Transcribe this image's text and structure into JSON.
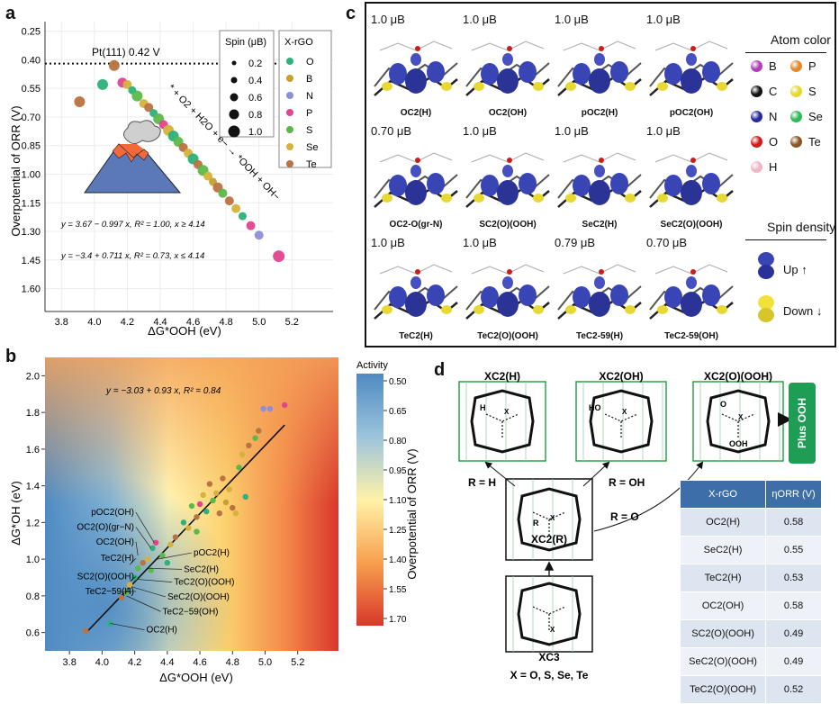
{
  "panels": {
    "a": "a",
    "b": "b",
    "c": "c",
    "d": "d"
  },
  "chart_data": [
    {
      "type": "scatter",
      "ylabel": "Overpotential of ORR (V)",
      "xlabel": "ΔG*OOH (eV)",
      "xlim": [
        3.7,
        5.45
      ],
      "ylim": [
        1.72,
        0.2
      ],
      "yreversed": true,
      "x_ticks": [
        "3.8",
        "4.0",
        "4.2",
        "4.4",
        "4.6",
        "4.8",
        "5.0",
        "5.2"
      ],
      "y_ticks": [
        "0.25",
        "0.40",
        "0.55",
        "0.70",
        "0.85",
        "1.00",
        "1.15",
        "1.30",
        "1.45",
        "1.60"
      ],
      "reference_line": {
        "label": "Pt(111) 0.42 V",
        "y": 0.42
      },
      "reaction_label": "* + O2 + H2O + e− → *OOH + OH−",
      "fit_lines": [
        {
          "label": "y = 3.67 − 0.997 x, R² = 1.00, x ≥ 4.14",
          "intercept": 3.67,
          "slope": -0.997,
          "xrange": [
            4.14,
            5.12
          ]
        },
        {
          "label": "y = −3.4 + 0.711 x, R² = 0.73, x ≤ 4.14",
          "intercept": -3.4,
          "slope": 0.711,
          "xrange": [
            3.9,
            4.14
          ]
        }
      ],
      "spin_legend": {
        "title": "Spin (μB)",
        "values": [
          "0.2",
          "0.4",
          "0.6",
          "0.8",
          "1.0"
        ]
      },
      "group_legend": {
        "title": "X-rGO",
        "items": [
          {
            "label": "O",
            "color": "#2db07a"
          },
          {
            "label": "B",
            "color": "#c5a032"
          },
          {
            "label": "N",
            "color": "#8c8fd8"
          },
          {
            "label": "P",
            "color": "#e0458e"
          },
          {
            "label": "S",
            "color": "#5cb849"
          },
          {
            "label": "Se",
            "color": "#d6b23c"
          },
          {
            "label": "Te",
            "color": "#b87340"
          }
        ]
      },
      "points": [
        {
          "x": 3.91,
          "y": 0.62,
          "g": "Te",
          "s": 0.8
        },
        {
          "x": 4.05,
          "y": 0.53,
          "g": "O",
          "s": 0.8
        },
        {
          "x": 4.12,
          "y": 0.43,
          "g": "Te",
          "s": 0.8
        },
        {
          "x": 4.17,
          "y": 0.52,
          "g": "P",
          "s": 0.7
        },
        {
          "x": 4.2,
          "y": 0.53,
          "g": "Se",
          "s": 0.6
        },
        {
          "x": 4.23,
          "y": 0.56,
          "g": "O",
          "s": 0.5
        },
        {
          "x": 4.26,
          "y": 0.59,
          "g": "S",
          "s": 0.8
        },
        {
          "x": 4.3,
          "y": 0.63,
          "g": "Se",
          "s": 0.6
        },
        {
          "x": 4.33,
          "y": 0.65,
          "g": "Te",
          "s": 0.6
        },
        {
          "x": 4.36,
          "y": 0.68,
          "g": "O",
          "s": 0.5
        },
        {
          "x": 4.39,
          "y": 0.71,
          "g": "S",
          "s": 0.8
        },
        {
          "x": 4.42,
          "y": 0.74,
          "g": "P",
          "s": 0.6
        },
        {
          "x": 4.45,
          "y": 0.77,
          "g": "Se",
          "s": 0.8
        },
        {
          "x": 4.48,
          "y": 0.8,
          "g": "O",
          "s": 0.8
        },
        {
          "x": 4.51,
          "y": 0.83,
          "g": "S",
          "s": 0.7
        },
        {
          "x": 4.54,
          "y": 0.86,
          "g": "Te",
          "s": 0.6
        },
        {
          "x": 4.57,
          "y": 0.89,
          "g": "Se",
          "s": 0.6
        },
        {
          "x": 4.6,
          "y": 0.92,
          "g": "O",
          "s": 0.8
        },
        {
          "x": 4.63,
          "y": 0.95,
          "g": "Te",
          "s": 0.6
        },
        {
          "x": 4.66,
          "y": 0.98,
          "g": "S",
          "s": 0.8
        },
        {
          "x": 4.69,
          "y": 1.01,
          "g": "Se",
          "s": 0.6
        },
        {
          "x": 4.72,
          "y": 1.04,
          "g": "B",
          "s": 0.5
        },
        {
          "x": 4.75,
          "y": 1.07,
          "g": "Te",
          "s": 0.7
        },
        {
          "x": 4.78,
          "y": 1.1,
          "g": "S",
          "s": 0.6
        },
        {
          "x": 4.82,
          "y": 1.14,
          "g": "Te",
          "s": 0.6
        },
        {
          "x": 4.86,
          "y": 1.18,
          "g": "Se",
          "s": 0.6
        },
        {
          "x": 4.9,
          "y": 1.22,
          "g": "O",
          "s": 0.5
        },
        {
          "x": 4.95,
          "y": 1.27,
          "g": "P",
          "s": 0.6
        },
        {
          "x": 5.0,
          "y": 1.32,
          "g": "N",
          "s": 0.6
        },
        {
          "x": 5.12,
          "y": 1.43,
          "g": "P",
          "s": 0.9
        }
      ]
    },
    {
      "type": "scatter",
      "ylabel": "ΔG*OH (eV)",
      "xlabel": "ΔG*OOH (eV)",
      "xlim": [
        3.65,
        5.45
      ],
      "ylim": [
        0.5,
        2.1
      ],
      "x_ticks": [
        "3.8",
        "4.0",
        "4.2",
        "4.4",
        "4.6",
        "4.8",
        "5.0",
        "5.2"
      ],
      "y_ticks": [
        "0.6",
        "0.8",
        "1.0",
        "1.2",
        "1.4",
        "1.6",
        "1.8",
        "2.0"
      ],
      "fit_label": "y = −3.03 + 0.93 x, R² = 0.84",
      "fit": {
        "intercept": -3.03,
        "slope": 0.93,
        "xrange": [
          3.9,
          5.12
        ]
      },
      "colorbar": {
        "title": "Activity",
        "label": "Overpotential of ORR (V)",
        "ticks": [
          "0.50",
          "0.65",
          "0.80",
          "0.95",
          "1.10",
          "1.25",
          "1.40",
          "1.55",
          "1.70"
        ]
      },
      "annotations": [
        {
          "text": "pOC2(OH)",
          "x": 4.32,
          "y": 1.09,
          "side": "left",
          "ty": 1.24
        },
        {
          "text": "OC2(O)(gr−N)",
          "x": 4.3,
          "y": 1.06,
          "side": "left",
          "ty": 1.16
        },
        {
          "text": "OC2(OH)",
          "x": 4.22,
          "y": 1.02,
          "side": "left",
          "ty": 1.08
        },
        {
          "text": "TeC2(H)",
          "x": 4.17,
          "y": 0.97,
          "side": "left",
          "ty": 0.99
        },
        {
          "text": "SC2(O)(OOH)",
          "x": 4.17,
          "y": 0.88,
          "side": "left",
          "ty": 0.89
        },
        {
          "text": "TeC2−59(H)",
          "x": 4.12,
          "y": 0.82,
          "side": "left",
          "ty": 0.81
        },
        {
          "text": "pOC2(H)",
          "x": 4.34,
          "y": 1.0,
          "side": "right",
          "ty": 1.02
        },
        {
          "text": "SeC2(H)",
          "x": 4.28,
          "y": 0.95,
          "side": "right",
          "ty": 0.93
        },
        {
          "text": "TeC2(O)(OOH)",
          "x": 4.22,
          "y": 0.89,
          "side": "right",
          "ty": 0.86
        },
        {
          "text": "SeC2(O)(OOH)",
          "x": 4.18,
          "y": 0.85,
          "side": "right",
          "ty": 0.78
        },
        {
          "text": "TeC2−59(OH)",
          "x": 4.15,
          "y": 0.8,
          "side": "right",
          "ty": 0.7
        },
        {
          "text": "OC2(H)",
          "x": 4.05,
          "y": 0.65,
          "side": "right",
          "ty": 0.6
        }
      ],
      "points": [
        {
          "x": 3.9,
          "y": 0.61,
          "g": "Te"
        },
        {
          "x": 4.05,
          "y": 0.65,
          "g": "O"
        },
        {
          "x": 4.12,
          "y": 0.79,
          "g": "Te"
        },
        {
          "x": 4.15,
          "y": 0.82,
          "g": "S"
        },
        {
          "x": 4.17,
          "y": 0.86,
          "g": "Se"
        },
        {
          "x": 4.2,
          "y": 0.9,
          "g": "O"
        },
        {
          "x": 4.22,
          "y": 0.95,
          "g": "S"
        },
        {
          "x": 4.25,
          "y": 0.98,
          "g": "Te"
        },
        {
          "x": 4.28,
          "y": 1.0,
          "g": "Se"
        },
        {
          "x": 4.31,
          "y": 1.06,
          "g": "O"
        },
        {
          "x": 4.33,
          "y": 1.09,
          "g": "P"
        },
        {
          "x": 4.37,
          "y": 1.02,
          "g": "S"
        },
        {
          "x": 4.42,
          "y": 1.08,
          "g": "Se"
        },
        {
          "x": 4.45,
          "y": 1.12,
          "g": "Te"
        },
        {
          "x": 4.5,
          "y": 1.2,
          "g": "O"
        },
        {
          "x": 4.53,
          "y": 1.17,
          "g": "Se"
        },
        {
          "x": 4.55,
          "y": 1.29,
          "g": "S"
        },
        {
          "x": 4.58,
          "y": 1.23,
          "g": "Te"
        },
        {
          "x": 4.6,
          "y": 1.3,
          "g": "P"
        },
        {
          "x": 4.62,
          "y": 1.35,
          "g": "Se"
        },
        {
          "x": 4.64,
          "y": 1.26,
          "g": "O"
        },
        {
          "x": 4.66,
          "y": 1.41,
          "g": "Te"
        },
        {
          "x": 4.68,
          "y": 1.32,
          "g": "S"
        },
        {
          "x": 4.7,
          "y": 1.36,
          "g": "Se"
        },
        {
          "x": 4.72,
          "y": 1.25,
          "g": "Te"
        },
        {
          "x": 4.74,
          "y": 1.44,
          "g": "Te"
        },
        {
          "x": 4.76,
          "y": 1.31,
          "g": "B"
        },
        {
          "x": 4.78,
          "y": 1.38,
          "g": "Se"
        },
        {
          "x": 4.8,
          "y": 1.28,
          "g": "Te"
        },
        {
          "x": 4.82,
          "y": 1.25,
          "g": "Se"
        },
        {
          "x": 4.84,
          "y": 1.5,
          "g": "S"
        },
        {
          "x": 4.86,
          "y": 1.57,
          "g": "Se"
        },
        {
          "x": 4.88,
          "y": 1.34,
          "g": "O"
        },
        {
          "x": 4.9,
          "y": 1.62,
          "g": "Te"
        },
        {
          "x": 4.94,
          "y": 1.66,
          "g": "S"
        },
        {
          "x": 4.96,
          "y": 1.7,
          "g": "Te"
        },
        {
          "x": 4.99,
          "y": 1.82,
          "g": "N"
        },
        {
          "x": 5.03,
          "y": 1.82,
          "g": "N"
        },
        {
          "x": 5.12,
          "y": 1.84,
          "g": "P"
        },
        {
          "x": 4.4,
          "y": 0.98,
          "g": "O"
        },
        {
          "x": 4.58,
          "y": 1.15,
          "g": "S"
        },
        {
          "x": 4.3,
          "y": 0.94,
          "g": "S"
        }
      ]
    }
  ],
  "panel_c": {
    "structures": [
      {
        "spin": "1.0 μB",
        "label": "OC2(H)"
      },
      {
        "spin": "1.0 μB",
        "label": "OC2(OH)"
      },
      {
        "spin": "1.0 μB",
        "label": "pOC2(H)"
      },
      {
        "spin": "1.0 μB",
        "label": "pOC2(OH)"
      },
      {
        "spin": "0.70 μB",
        "label": "OC2-O(gr-N)"
      },
      {
        "spin": "1.0 μB",
        "label": "SC2(O)(OOH)"
      },
      {
        "spin": "1.0 μB",
        "label": "SeC2(H)"
      },
      {
        "spin": "1.0 μB",
        "label": "SeC2(O)(OOH)"
      },
      {
        "spin": "1.0 μB",
        "label": "TeC2(H)"
      },
      {
        "spin": "1.0 μB",
        "label": "TeC2(O)(OOH)"
      },
      {
        "spin": "0.79 μB",
        "label": "TeC2-59(H)"
      },
      {
        "spin": "0.70 μB",
        "label": "TeC2-59(OH)"
      }
    ],
    "atom_legend_title": "Atom color",
    "atoms": [
      {
        "label": "B",
        "color": "#b23fb8"
      },
      {
        "label": "P",
        "color": "#e08a2a"
      },
      {
        "label": "C",
        "color": "#111111"
      },
      {
        "label": "S",
        "color": "#e6d82c"
      },
      {
        "label": "N",
        "color": "#262a9c"
      },
      {
        "label": "Se",
        "color": "#2fb85a"
      },
      {
        "label": "O",
        "color": "#d11b1b"
      },
      {
        "label": "Te",
        "color": "#8a5423"
      },
      {
        "label": "H",
        "color": "#f0b6c6"
      }
    ],
    "spin_density_title": "Spin density",
    "spin_up": "Up ↑",
    "spin_down": "Down ↓"
  },
  "panel_d": {
    "top_labels": [
      "XC2(H)",
      "XC2(OH)",
      "XC2(O)(OOH)"
    ],
    "center_label": "XC2(R)",
    "bottom_label": "XC3",
    "r_labels": [
      "R = H",
      "R = OH",
      "R = O"
    ],
    "x_caption": "X = O, S, Se, Te",
    "atom_marks": {
      "x": "X",
      "r": "R",
      "h": "H",
      "ho": "HO",
      "o": "O",
      "ooh": "OOH"
    },
    "plus_ooh": "Plus OOH",
    "table": {
      "headers": [
        "X-rGO",
        "ηORR (V)"
      ],
      "rows": [
        [
          "OC2(H)",
          "0.58"
        ],
        [
          "SeC2(H)",
          "0.55"
        ],
        [
          "TeC2(H)",
          "0.53"
        ],
        [
          "OC2(OH)",
          "0.58"
        ],
        [
          "SC2(O)(OOH)",
          "0.49"
        ],
        [
          "SeC2(O)(OOH)",
          "0.49"
        ],
        [
          "TeC2(O)(OOH)",
          "0.52"
        ]
      ]
    }
  }
}
